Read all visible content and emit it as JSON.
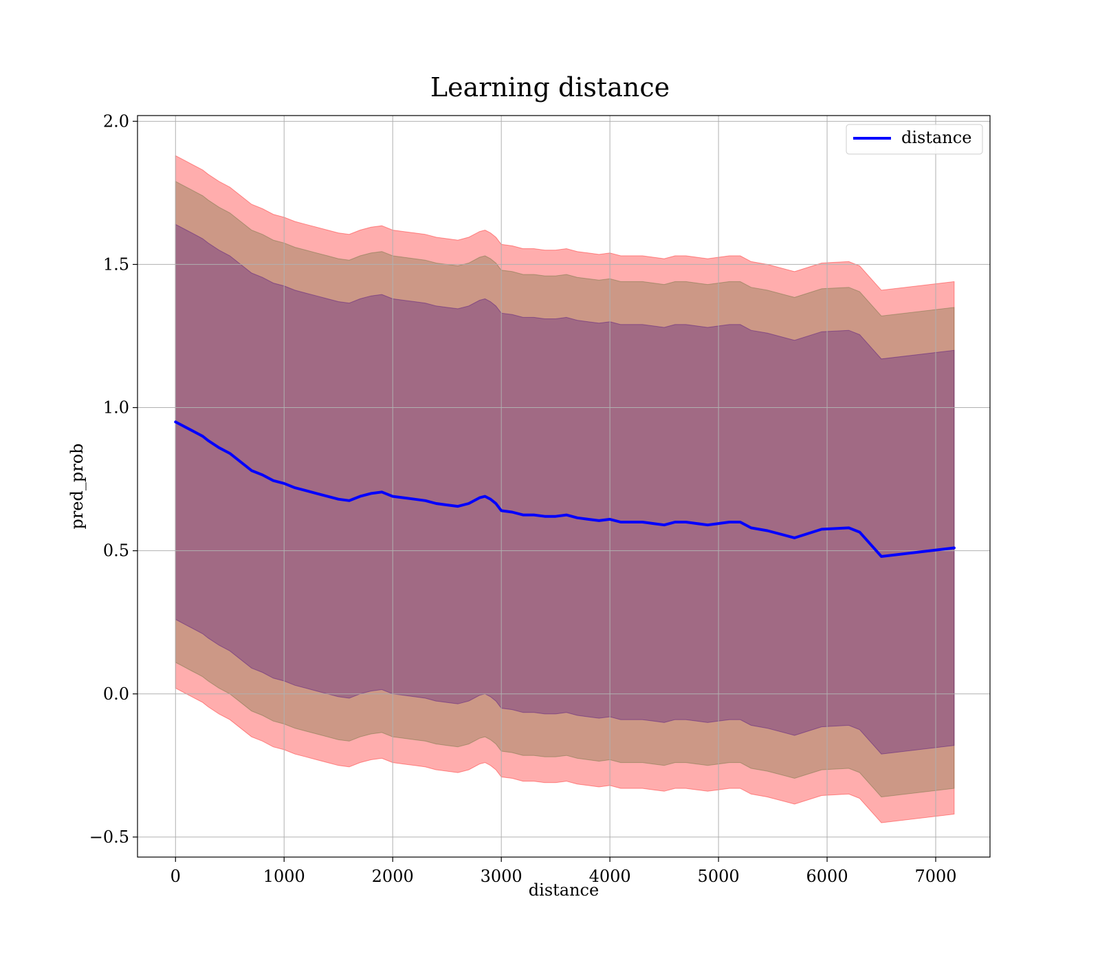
{
  "chart_data": {
    "type": "line",
    "title": "Learning distance",
    "xlabel": "distance",
    "ylabel": "pred_prob",
    "xlim": [
      -350,
      7500
    ],
    "ylim": [
      -0.57,
      2.02
    ],
    "x_ticks": [
      0,
      1000,
      2000,
      3000,
      4000,
      5000,
      6000,
      7000
    ],
    "x_tick_labels": [
      "0",
      "1000",
      "2000",
      "3000",
      "4000",
      "5000",
      "6000",
      "7000"
    ],
    "y_ticks": [
      -0.5,
      0.0,
      0.5,
      1.0,
      1.5,
      2.0
    ],
    "y_tick_labels": [
      "−0.5",
      "0.0",
      "0.5",
      "1.0",
      "1.5",
      "2.0"
    ],
    "grid": true,
    "legend_position": "top-right",
    "series": [
      {
        "name": "distance",
        "color": "#0000ff",
        "x": [
          0,
          50,
          100,
          150,
          200,
          250,
          300,
          400,
          500,
          600,
          700,
          800,
          900,
          1000,
          1100,
          1200,
          1300,
          1400,
          1500,
          1600,
          1700,
          1800,
          1900,
          2000,
          2100,
          2200,
          2300,
          2400,
          2500,
          2600,
          2700,
          2800,
          2850,
          2900,
          2950,
          3000,
          3100,
          3200,
          3300,
          3400,
          3500,
          3600,
          3700,
          3800,
          3900,
          4000,
          4100,
          4200,
          4300,
          4400,
          4500,
          4600,
          4700,
          4800,
          4900,
          5000,
          5100,
          5200,
          5300,
          5450,
          5700,
          5950,
          6200,
          6300,
          6500,
          7170
        ],
        "y": [
          0.95,
          0.94,
          0.93,
          0.92,
          0.91,
          0.9,
          0.885,
          0.86,
          0.84,
          0.81,
          0.78,
          0.765,
          0.745,
          0.735,
          0.72,
          0.71,
          0.7,
          0.69,
          0.68,
          0.675,
          0.69,
          0.7,
          0.705,
          0.69,
          0.685,
          0.68,
          0.675,
          0.665,
          0.66,
          0.655,
          0.665,
          0.685,
          0.69,
          0.68,
          0.665,
          0.64,
          0.635,
          0.625,
          0.625,
          0.62,
          0.62,
          0.625,
          0.615,
          0.61,
          0.605,
          0.61,
          0.6,
          0.6,
          0.6,
          0.595,
          0.59,
          0.6,
          0.6,
          0.595,
          0.59,
          0.595,
          0.6,
          0.6,
          0.58,
          0.57,
          0.545,
          0.575,
          0.58,
          0.565,
          0.48,
          0.51
        ],
        "bands": [
          {
            "color": "#ff0000",
            "opacity": 0.32,
            "upper_offset": 0.93,
            "lower_offset": -0.93
          },
          {
            "color": "#556b2f",
            "opacity": 0.3,
            "upper_offset": 0.84,
            "lower_offset": -0.84
          },
          {
            "color": "#400080",
            "opacity": 0.3,
            "upper_offset": 0.69,
            "lower_offset": -0.69
          }
        ]
      }
    ]
  }
}
